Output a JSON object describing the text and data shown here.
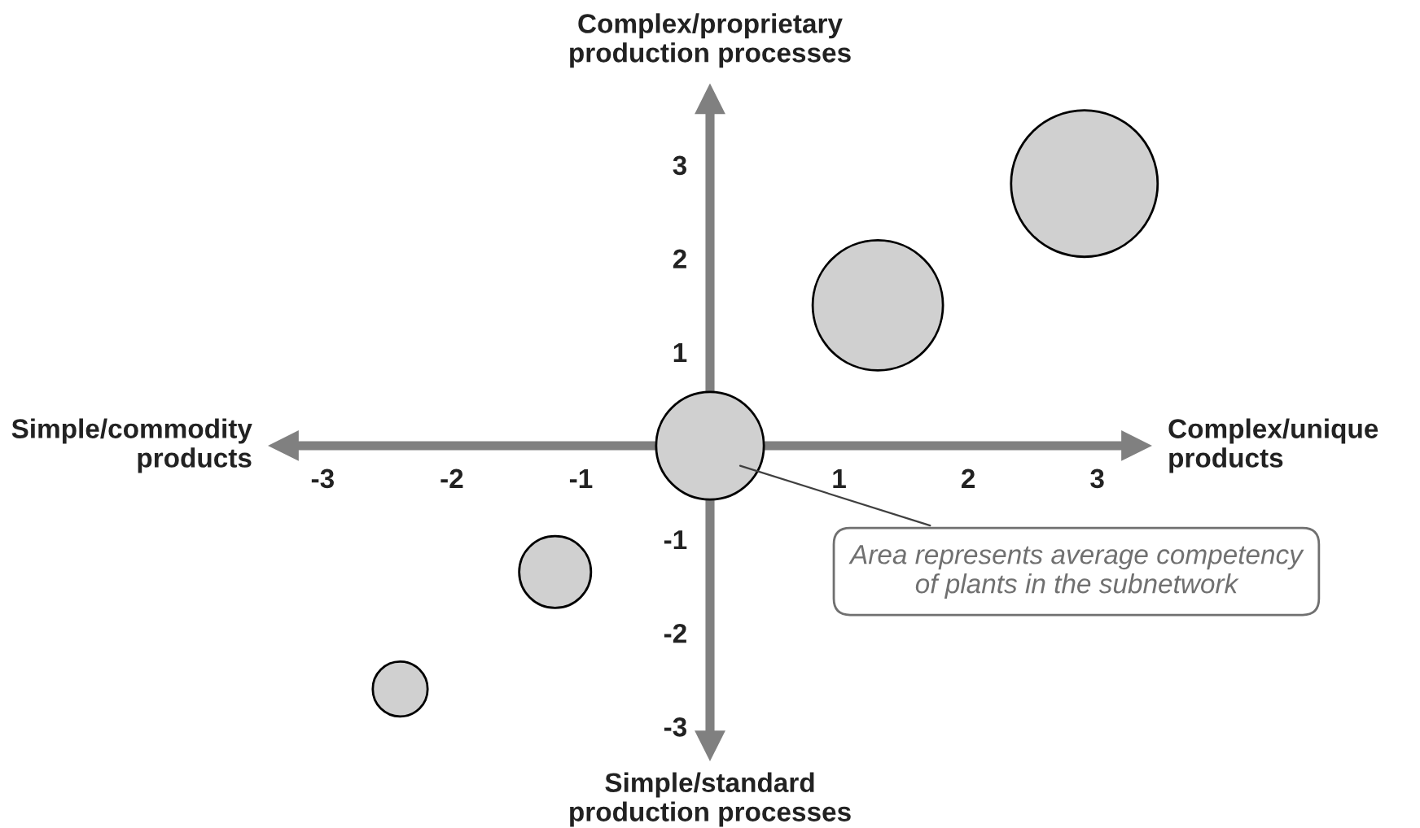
{
  "chart_data": {
    "type": "bubble",
    "x": [
      2.9,
      1.3,
      0,
      -1.2,
      -2.4
    ],
    "values": [
      2.8,
      1.5,
      0,
      -1.35,
      -2.6
    ],
    "sizes": [
      1,
      0.79,
      0.54,
      0.24,
      0.14
    ],
    "color": "#d0d0d0",
    "xlim": [
      -3.3,
      3.3
    ],
    "ylim": [
      -3.2,
      3.7
    ],
    "xticks": [
      -3,
      -2,
      -1,
      1,
      2,
      3
    ],
    "yticks": [
      -3,
      -2,
      -1,
      1,
      2,
      3
    ],
    "grid": false,
    "annotations": [
      "Complex/proprietary\nproduction processes",
      "Complex/unique\nproducts",
      "Simple/standard\nproduction processes",
      "Simple/commodity\nproducts",
      "Area represents average competency\nof plants in the subnetwork"
    ]
  }
}
